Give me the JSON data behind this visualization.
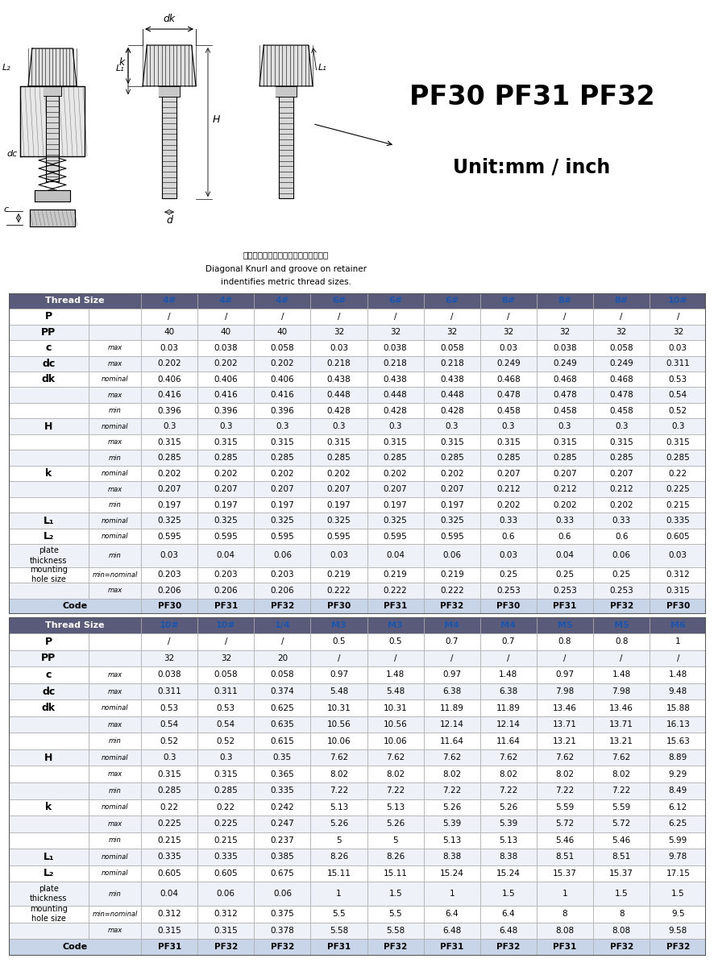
{
  "header_bg": "#5a5a7a",
  "subheader_bg": "#c8d4e8",
  "blue_text": "#1a56b0",
  "white": "#ffffff",
  "light_row": "#eef2f8",
  "dark_row": "#ffffff",
  "table1": {
    "thread_sizes": [
      "4#",
      "4#",
      "4#",
      "6#",
      "6#",
      "6#",
      "8#",
      "8#",
      "8#",
      "10#"
    ],
    "P": [
      "/",
      "/",
      "/",
      "/",
      "/",
      "/",
      "/",
      "/",
      "/",
      "/"
    ],
    "PP": [
      "40",
      "40",
      "40",
      "32",
      "32",
      "32",
      "32",
      "32",
      "32",
      "32"
    ],
    "c_max": [
      "0.03",
      "0.038",
      "0.058",
      "0.03",
      "0.038",
      "0.058",
      "0.03",
      "0.038",
      "0.058",
      "0.03"
    ],
    "dc_max": [
      "0.202",
      "0.202",
      "0.202",
      "0.218",
      "0.218",
      "0.218",
      "0.249",
      "0.249",
      "0.249",
      "0.311"
    ],
    "dk_nominal": [
      "0.406",
      "0.406",
      "0.406",
      "0.438",
      "0.438",
      "0.438",
      "0.468",
      "0.468",
      "0.468",
      "0.53"
    ],
    "dk_max": [
      "0.416",
      "0.416",
      "0.416",
      "0.448",
      "0.448",
      "0.448",
      "0.478",
      "0.478",
      "0.478",
      "0.54"
    ],
    "dk_min": [
      "0.396",
      "0.396",
      "0.396",
      "0.428",
      "0.428",
      "0.428",
      "0.458",
      "0.458",
      "0.458",
      "0.52"
    ],
    "H_nominal": [
      "0.3",
      "0.3",
      "0.3",
      "0.3",
      "0.3",
      "0.3",
      "0.3",
      "0.3",
      "0.3",
      "0.3"
    ],
    "H_max": [
      "0.315",
      "0.315",
      "0.315",
      "0.315",
      "0.315",
      "0.315",
      "0.315",
      "0.315",
      "0.315",
      "0.315"
    ],
    "H_min": [
      "0.285",
      "0.285",
      "0.285",
      "0.285",
      "0.285",
      "0.285",
      "0.285",
      "0.285",
      "0.285",
      "0.285"
    ],
    "k_nominal": [
      "0.202",
      "0.202",
      "0.202",
      "0.202",
      "0.202",
      "0.202",
      "0.207",
      "0.207",
      "0.207",
      "0.22"
    ],
    "k_max": [
      "0.207",
      "0.207",
      "0.207",
      "0.207",
      "0.207",
      "0.207",
      "0.212",
      "0.212",
      "0.212",
      "0.225"
    ],
    "k_min": [
      "0.197",
      "0.197",
      "0.197",
      "0.197",
      "0.197",
      "0.197",
      "0.202",
      "0.202",
      "0.202",
      "0.215"
    ],
    "L1_nominal": [
      "0.325",
      "0.325",
      "0.325",
      "0.325",
      "0.325",
      "0.325",
      "0.33",
      "0.33",
      "0.33",
      "0.335"
    ],
    "L2_nominal": [
      "0.595",
      "0.595",
      "0.595",
      "0.595",
      "0.595",
      "0.595",
      "0.6",
      "0.6",
      "0.6",
      "0.605"
    ],
    "plate_min": [
      "0.03",
      "0.04",
      "0.06",
      "0.03",
      "0.04",
      "0.06",
      "0.03",
      "0.04",
      "0.06",
      "0.03"
    ],
    "mounting_min": [
      "0.203",
      "0.203",
      "0.203",
      "0.219",
      "0.219",
      "0.219",
      "0.25",
      "0.25",
      "0.25",
      "0.312"
    ],
    "mounting_max": [
      "0.206",
      "0.206",
      "0.206",
      "0.222",
      "0.222",
      "0.222",
      "0.253",
      "0.253",
      "0.253",
      "0.315"
    ],
    "code": [
      "PF30",
      "PF31",
      "PF32",
      "PF30",
      "PF31",
      "PF32",
      "PF30",
      "PF31",
      "PF32",
      "PF30"
    ]
  },
  "table2": {
    "thread_sizes": [
      "10#",
      "10#",
      "1/4",
      "M3",
      "M3",
      "M4",
      "M4",
      "M5",
      "M5",
      "M6"
    ],
    "P": [
      "/",
      "/",
      "/",
      "0.5",
      "0.5",
      "0.7",
      "0.7",
      "0.8",
      "0.8",
      "1"
    ],
    "PP": [
      "32",
      "32",
      "20",
      "/",
      "/",
      "/",
      "/",
      "/",
      "/",
      "/"
    ],
    "c_max": [
      "0.038",
      "0.058",
      "0.058",
      "0.97",
      "1.48",
      "0.97",
      "1.48",
      "0.97",
      "1.48",
      "1.48"
    ],
    "dc_max": [
      "0.311",
      "0.311",
      "0.374",
      "5.48",
      "5.48",
      "6.38",
      "6.38",
      "7.98",
      "7.98",
      "9.48"
    ],
    "dk_nominal": [
      "0.53",
      "0.53",
      "0.625",
      "10.31",
      "10.31",
      "11.89",
      "11.89",
      "13.46",
      "13.46",
      "15.88"
    ],
    "dk_max": [
      "0.54",
      "0.54",
      "0.635",
      "10.56",
      "10.56",
      "12.14",
      "12.14",
      "13.71",
      "13.71",
      "16.13"
    ],
    "dk_min": [
      "0.52",
      "0.52",
      "0.615",
      "10.06",
      "10.06",
      "11.64",
      "11.64",
      "13.21",
      "13.21",
      "15.63"
    ],
    "H_nominal": [
      "0.3",
      "0.3",
      "0.35",
      "7.62",
      "7.62",
      "7.62",
      "7.62",
      "7.62",
      "7.62",
      "8.89"
    ],
    "H_max": [
      "0.315",
      "0.315",
      "0.365",
      "8.02",
      "8.02",
      "8.02",
      "8.02",
      "8.02",
      "8.02",
      "9.29"
    ],
    "H_min": [
      "0.285",
      "0.285",
      "0.335",
      "7.22",
      "7.22",
      "7.22",
      "7.22",
      "7.22",
      "7.22",
      "8.49"
    ],
    "k_nominal": [
      "0.22",
      "0.22",
      "0.242",
      "5.13",
      "5.13",
      "5.26",
      "5.26",
      "5.59",
      "5.59",
      "6.12"
    ],
    "k_max": [
      "0.225",
      "0.225",
      "0.247",
      "5.26",
      "5.26",
      "5.39",
      "5.39",
      "5.72",
      "5.72",
      "6.25"
    ],
    "k_min": [
      "0.215",
      "0.215",
      "0.237",
      "5",
      "5",
      "5.13",
      "5.13",
      "5.46",
      "5.46",
      "5.99"
    ],
    "L1_nominal": [
      "0.335",
      "0.335",
      "0.385",
      "8.26",
      "8.26",
      "8.38",
      "8.38",
      "8.51",
      "8.51",
      "9.78"
    ],
    "L2_nominal": [
      "0.605",
      "0.605",
      "0.675",
      "15.11",
      "15.11",
      "15.24",
      "15.24",
      "15.37",
      "15.37",
      "17.15"
    ],
    "plate_min": [
      "0.04",
      "0.06",
      "0.06",
      "1",
      "1.5",
      "1",
      "1.5",
      "1",
      "1.5",
      "1.5"
    ],
    "mounting_min": [
      "0.312",
      "0.312",
      "0.375",
      "5.5",
      "5.5",
      "6.4",
      "6.4",
      "8",
      "8",
      "9.5"
    ],
    "mounting_max": [
      "0.315",
      "0.315",
      "0.378",
      "5.58",
      "5.58",
      "6.48",
      "6.48",
      "8.08",
      "8.08",
      "9.58"
    ],
    "code": [
      "PF31",
      "PF32",
      "PF32",
      "PF31",
      "PF32",
      "PF31",
      "PF32",
      "PF31",
      "PF32",
      "PF32"
    ]
  }
}
